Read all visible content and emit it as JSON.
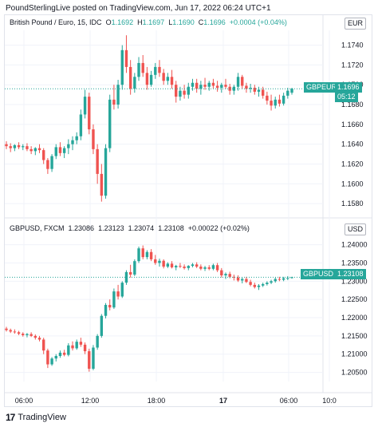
{
  "header": {
    "credit": "PoundSterlingLive posted on TradingView.com, Jun 17, 2022 06:24 UTC+1"
  },
  "top_pane": {
    "legend": {
      "symbol": "British Pound / Euro, 15, IDC",
      "o_label": "O",
      "o": "1.1692",
      "h_label": "H",
      "h": "1.1697",
      "l_label": "L",
      "l": "1.1690",
      "c_label": "C",
      "c": "1.1696",
      "chg": "+0.0004 (+0.04%)"
    },
    "currency": "EUR",
    "series_tag": "GBPEUR",
    "last_price": "1.1696",
    "countdown": "05:12"
  },
  "bottom_pane": {
    "legend": {
      "symbol": "GBPUSD, FXCM",
      "o": "1.23086",
      "h": "1.23123",
      "l": "1.23074",
      "c": "1.23108",
      "chg": "+0.00022 (+0.02%)"
    },
    "currency": "USD",
    "series_tag": "GBPUSD",
    "last_price": "1.23108"
  },
  "footer": {
    "brand": "TradingView",
    "brand_icon": "tradingview-logo-icon"
  },
  "colors": {
    "up": "#26a69a",
    "down": "#ef5350",
    "grid": "#f0f3fa",
    "axis_text": "#131722"
  },
  "chart_data": [
    {
      "type": "candlestick",
      "title": "British Pound / Euro, 15, IDC",
      "currency": "EUR",
      "yticks": [
        1.158,
        1.16,
        1.162,
        1.164,
        1.166,
        1.168,
        1.17,
        1.172,
        1.174
      ],
      "ylim": [
        1.1568,
        1.1755
      ],
      "x_ticks": [
        "06:00",
        "12:00",
        "18:00",
        "17",
        "06:00",
        "10:0"
      ],
      "last_price": 1.1696,
      "grid": true,
      "candles": [
        [
          1.164,
          1.1643,
          1.1635,
          1.1638
        ],
        [
          1.1638,
          1.1641,
          1.1632,
          1.1636
        ],
        [
          1.1636,
          1.164,
          1.1633,
          1.1639
        ],
        [
          1.1639,
          1.1642,
          1.1635,
          1.1637
        ],
        [
          1.1637,
          1.164,
          1.1634,
          1.1638
        ],
        [
          1.1638,
          1.1641,
          1.1633,
          1.1635
        ],
        [
          1.1635,
          1.1638,
          1.163,
          1.1633
        ],
        [
          1.1633,
          1.1637,
          1.1629,
          1.1636
        ],
        [
          1.1636,
          1.164,
          1.1631,
          1.1634
        ],
        [
          1.1634,
          1.1636,
          1.162,
          1.1624
        ],
        [
          1.1624,
          1.1626,
          1.161,
          1.1615
        ],
        [
          1.1615,
          1.163,
          1.1612,
          1.1628
        ],
        [
          1.1628,
          1.164,
          1.1625,
          1.1637
        ],
        [
          1.1637,
          1.1642,
          1.1628,
          1.1631
        ],
        [
          1.1631,
          1.1638,
          1.1626,
          1.1636
        ],
        [
          1.1636,
          1.1645,
          1.163,
          1.164
        ],
        [
          1.164,
          1.1648,
          1.1634,
          1.1644
        ],
        [
          1.1644,
          1.1652,
          1.164,
          1.1648
        ],
        [
          1.1648,
          1.1675,
          1.1644,
          1.167
        ],
        [
          1.167,
          1.1695,
          1.1666,
          1.1688
        ],
        [
          1.1688,
          1.1692,
          1.165,
          1.1655
        ],
        [
          1.1655,
          1.166,
          1.163,
          1.1635
        ],
        [
          1.1635,
          1.164,
          1.16,
          1.161
        ],
        [
          1.161,
          1.162,
          1.1582,
          1.1588
        ],
        [
          1.1588,
          1.164,
          1.1585,
          1.1636
        ],
        [
          1.1636,
          1.169,
          1.1632,
          1.1685
        ],
        [
          1.1685,
          1.17,
          1.1675,
          1.168
        ],
        [
          1.168,
          1.1705,
          1.1676,
          1.17
        ],
        [
          1.17,
          1.174,
          1.1695,
          1.1735
        ],
        [
          1.1735,
          1.175,
          1.1712,
          1.1718
        ],
        [
          1.1718,
          1.1725,
          1.169,
          1.1696
        ],
        [
          1.1696,
          1.1712,
          1.1692,
          1.1708
        ],
        [
          1.1708,
          1.1728,
          1.1704,
          1.1722
        ],
        [
          1.1722,
          1.173,
          1.1708,
          1.1712
        ],
        [
          1.1712,
          1.1718,
          1.1695,
          1.17
        ],
        [
          1.17,
          1.1714,
          1.1698,
          1.171
        ],
        [
          1.171,
          1.1722,
          1.1706,
          1.1718
        ],
        [
          1.1718,
          1.1725,
          1.1708,
          1.1712
        ],
        [
          1.1712,
          1.1716,
          1.17,
          1.1704
        ],
        [
          1.1704,
          1.1712,
          1.17,
          1.1708
        ],
        [
          1.1708,
          1.1715,
          1.1696,
          1.17
        ],
        [
          1.17,
          1.1704,
          1.1682,
          1.1688
        ],
        [
          1.1688,
          1.1698,
          1.1684,
          1.1694
        ],
        [
          1.1694,
          1.17,
          1.1686,
          1.169
        ],
        [
          1.169,
          1.1702,
          1.1686,
          1.1698
        ],
        [
          1.1698,
          1.1706,
          1.1694,
          1.1702
        ],
        [
          1.1702,
          1.1706,
          1.1692,
          1.1696
        ],
        [
          1.1696,
          1.1704,
          1.169,
          1.17
        ],
        [
          1.17,
          1.1707,
          1.1695,
          1.1698
        ],
        [
          1.1698,
          1.1704,
          1.1694,
          1.1702
        ],
        [
          1.1702,
          1.1706,
          1.1696,
          1.1699
        ],
        [
          1.1699,
          1.1704,
          1.1693,
          1.1697
        ],
        [
          1.1697,
          1.1702,
          1.1692,
          1.17
        ],
        [
          1.17,
          1.1706,
          1.1696,
          1.1698
        ],
        [
          1.1698,
          1.1701,
          1.169,
          1.1694
        ],
        [
          1.1694,
          1.17,
          1.169,
          1.1698
        ],
        [
          1.1698,
          1.1712,
          1.1694,
          1.1708
        ],
        [
          1.1708,
          1.171,
          1.1696,
          1.1699
        ],
        [
          1.1699,
          1.1702,
          1.1692,
          1.1696
        ],
        [
          1.1696,
          1.1701,
          1.1692,
          1.1697
        ],
        [
          1.1697,
          1.17,
          1.169,
          1.1693
        ],
        [
          1.1693,
          1.1698,
          1.1688,
          1.1695
        ],
        [
          1.1695,
          1.1698,
          1.1686,
          1.1689
        ],
        [
          1.1689,
          1.1693,
          1.168,
          1.1684
        ],
        [
          1.1684,
          1.169,
          1.1674,
          1.1679
        ],
        [
          1.1679,
          1.1688,
          1.1676,
          1.1685
        ],
        [
          1.1685,
          1.169,
          1.1678,
          1.1681
        ],
        [
          1.1681,
          1.1692,
          1.1679,
          1.1689
        ],
        [
          1.1689,
          1.1697,
          1.1686,
          1.1694
        ],
        [
          1.1692,
          1.1697,
          1.169,
          1.1696
        ]
      ]
    },
    {
      "type": "candlestick",
      "title": "GBPUSD, FXCM",
      "currency": "USD",
      "yticks": [
        1.205,
        1.21,
        1.215,
        1.22,
        1.225,
        1.23,
        1.235,
        1.24
      ],
      "ylim": [
        1.2025,
        1.2432
      ],
      "last_price": 1.23108,
      "grid": true,
      "candles": [
        [
          1.217,
          1.2175,
          1.2162,
          1.2166
        ],
        [
          1.2166,
          1.217,
          1.2158,
          1.2162
        ],
        [
          1.2162,
          1.2168,
          1.2156,
          1.216
        ],
        [
          1.216,
          1.2164,
          1.2152,
          1.2156
        ],
        [
          1.2156,
          1.216,
          1.2148,
          1.2152
        ],
        [
          1.2152,
          1.2158,
          1.2146,
          1.2155
        ],
        [
          1.2155,
          1.216,
          1.2147,
          1.215
        ],
        [
          1.215,
          1.2154,
          1.214,
          1.2145
        ],
        [
          1.2145,
          1.215,
          1.2135,
          1.214
        ],
        [
          1.214,
          1.2145,
          1.21,
          1.211
        ],
        [
          1.211,
          1.2115,
          1.2062,
          1.2072
        ],
        [
          1.2072,
          1.2092,
          1.2068,
          1.2088
        ],
        [
          1.2088,
          1.21,
          1.208,
          1.2095
        ],
        [
          1.2095,
          1.211,
          1.209,
          1.2104
        ],
        [
          1.2104,
          1.2112,
          1.2094,
          1.2098
        ],
        [
          1.2098,
          1.213,
          1.2094,
          1.2124
        ],
        [
          1.2124,
          1.2135,
          1.211,
          1.2116
        ],
        [
          1.2116,
          1.214,
          1.2112,
          1.2134
        ],
        [
          1.2134,
          1.2145,
          1.212,
          1.2126
        ],
        [
          1.2126,
          1.2132,
          1.21,
          1.2108
        ],
        [
          1.2108,
          1.2115,
          1.2052,
          1.206
        ],
        [
          1.206,
          1.2125,
          1.2056,
          1.2118
        ],
        [
          1.2118,
          1.2155,
          1.2112,
          1.215
        ],
        [
          1.215,
          1.221,
          1.2145,
          1.2205
        ],
        [
          1.2205,
          1.224,
          1.2198,
          1.2235
        ],
        [
          1.2235,
          1.225,
          1.222,
          1.2228
        ],
        [
          1.2228,
          1.228,
          1.2224,
          1.2272
        ],
        [
          1.2272,
          1.229,
          1.225,
          1.2258
        ],
        [
          1.2258,
          1.23,
          1.2254,
          1.2296
        ],
        [
          1.2296,
          1.233,
          1.229,
          1.2325
        ],
        [
          1.2325,
          1.2345,
          1.231,
          1.2318
        ],
        [
          1.2318,
          1.236,
          1.2314,
          1.2355
        ],
        [
          1.2355,
          1.2395,
          1.235,
          1.239
        ],
        [
          1.239,
          1.2398,
          1.236,
          1.2366
        ],
        [
          1.2366,
          1.2385,
          1.236,
          1.238
        ],
        [
          1.238,
          1.2388,
          1.2355,
          1.236
        ],
        [
          1.236,
          1.2372,
          1.2345,
          1.235
        ],
        [
          1.235,
          1.2362,
          1.234,
          1.2356
        ],
        [
          1.2356,
          1.236,
          1.2335,
          1.234
        ],
        [
          1.234,
          1.2352,
          1.2336,
          1.2348
        ],
        [
          1.2348,
          1.2355,
          1.2335,
          1.2338
        ],
        [
          1.2338,
          1.2345,
          1.233,
          1.2342
        ],
        [
          1.2342,
          1.235,
          1.2336,
          1.234
        ],
        [
          1.234,
          1.2346,
          1.2332,
          1.2336
        ],
        [
          1.2336,
          1.2344,
          1.233,
          1.2342
        ],
        [
          1.2342,
          1.235,
          1.2338,
          1.2346
        ],
        [
          1.2346,
          1.2352,
          1.2336,
          1.234
        ],
        [
          1.234,
          1.2346,
          1.233,
          1.2334
        ],
        [
          1.2334,
          1.2342,
          1.2328,
          1.2338
        ],
        [
          1.2338,
          1.2344,
          1.233,
          1.2334
        ],
        [
          1.2334,
          1.2348,
          1.233,
          1.2344
        ],
        [
          1.2344,
          1.235,
          1.2325,
          1.233
        ],
        [
          1.233,
          1.2336,
          1.231,
          1.2316
        ],
        [
          1.2316,
          1.2324,
          1.2306,
          1.232
        ],
        [
          1.232,
          1.2326,
          1.2308,
          1.2312
        ],
        [
          1.2312,
          1.2318,
          1.2302,
          1.231
        ],
        [
          1.231,
          1.2316,
          1.2298,
          1.2302
        ],
        [
          1.2302,
          1.231,
          1.2294,
          1.2306
        ],
        [
          1.2306,
          1.2312,
          1.2295,
          1.2298
        ],
        [
          1.2298,
          1.2304,
          1.2286,
          1.229
        ],
        [
          1.229,
          1.2296,
          1.228,
          1.2284
        ],
        [
          1.2284,
          1.2292,
          1.2276,
          1.2288
        ],
        [
          1.2288,
          1.2296,
          1.2284,
          1.2292
        ],
        [
          1.2292,
          1.23,
          1.2288,
          1.2296
        ],
        [
          1.2296,
          1.2304,
          1.2292,
          1.23
        ],
        [
          1.23,
          1.231,
          1.2296,
          1.2306
        ],
        [
          1.2306,
          1.2312,
          1.23,
          1.2304
        ],
        [
          1.2304,
          1.2312,
          1.23,
          1.2308
        ],
        [
          1.2308,
          1.2314,
          1.2303,
          1.2309
        ],
        [
          1.23086,
          1.23123,
          1.23074,
          1.23108
        ]
      ]
    }
  ]
}
